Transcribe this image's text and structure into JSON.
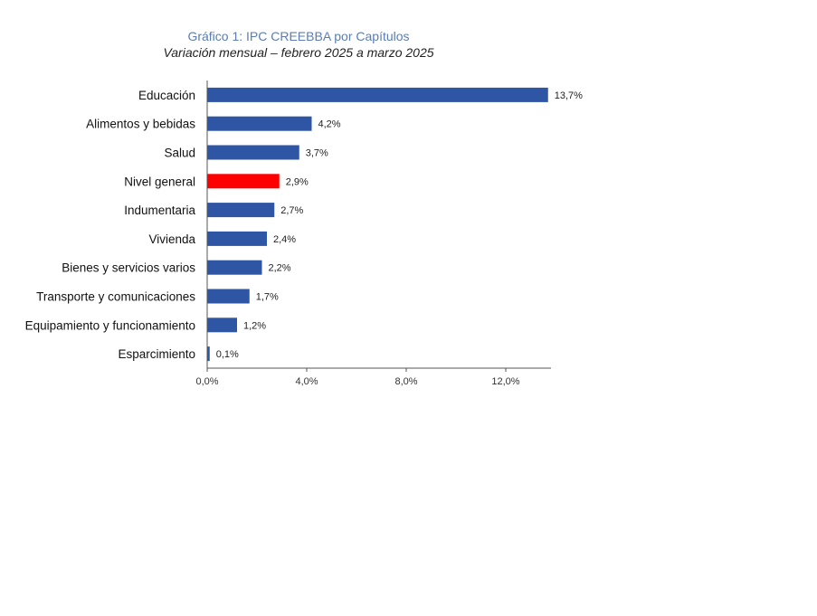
{
  "chart_data": {
    "type": "bar",
    "orientation": "horizontal",
    "title": "Gráfico 1: IPC CREEBBA por Capítulos",
    "subtitle": "Variación mensual – febrero 2025 a marzo 2025",
    "categories": [
      "Educación",
      "Alimentos y bebidas",
      "Salud",
      "Nivel general",
      "Indumentaria",
      "Vivienda",
      "Bienes y servicios varios",
      "Transporte y comunicaciones",
      "Equipamiento y funcionamiento",
      "Esparcimiento"
    ],
    "values": [
      13.7,
      4.2,
      3.7,
      2.9,
      2.7,
      2.4,
      2.2,
      1.7,
      1.2,
      0.1
    ],
    "value_labels": [
      "13,7%",
      "4,2%",
      "3,7%",
      "2,9%",
      "2,7%",
      "2,4%",
      "2,2%",
      "1,7%",
      "1,2%",
      "0,1%"
    ],
    "highlight_category": "Nivel general",
    "xlim": [
      0,
      14
    ],
    "xticks": [
      0,
      4,
      8,
      12
    ],
    "xtick_labels": [
      "0,0%",
      "4,0%",
      "8,0%",
      "12,0%"
    ],
    "xlabel": "",
    "ylabel": "",
    "colors": {
      "bar": "#2e56a5",
      "highlight": "#ff0000",
      "axis": "#555555"
    },
    "grid": false,
    "legend": "none"
  }
}
